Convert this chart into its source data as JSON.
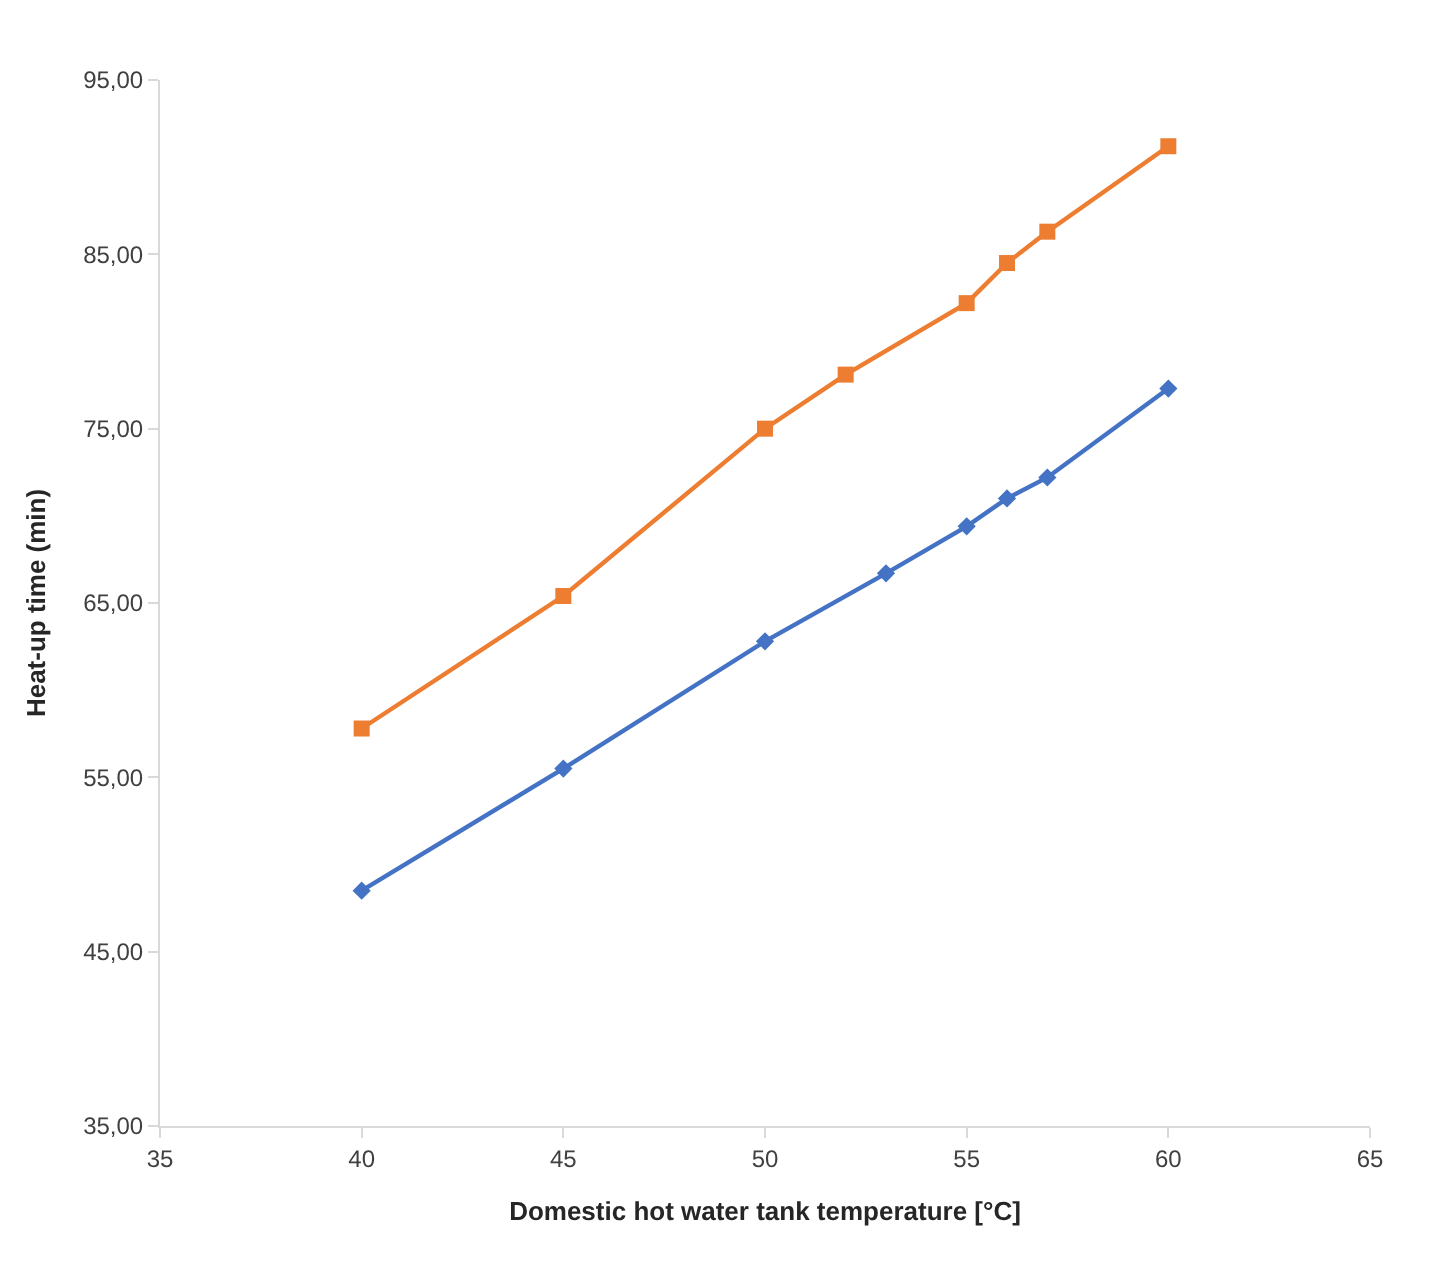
{
  "chart_data": {
    "type": "line",
    "xlabel": "Domestic hot water tank temperature [°C]",
    "ylabel": "Heat-up time (min)",
    "xlim": [
      35,
      65
    ],
    "xticks": [
      35,
      40,
      45,
      50,
      55,
      60,
      65
    ],
    "ylim": [
      35,
      95
    ],
    "yticks": [
      {
        "value": 35,
        "label": "35,00"
      },
      {
        "value": 45,
        "label": "45,00"
      },
      {
        "value": 55,
        "label": "55,00"
      },
      {
        "value": 65,
        "label": "65,00"
      },
      {
        "value": 75,
        "label": "75,00"
      },
      {
        "value": 85,
        "label": "85,00"
      },
      {
        "value": 95,
        "label": "95,00"
      }
    ],
    "series": [
      {
        "color": "#ed7d31",
        "marker": "square",
        "x": [
          40,
          45,
          50,
          52,
          55,
          56,
          57,
          60
        ],
        "values": [
          57.8,
          65.4,
          75.0,
          78.1,
          82.2,
          84.5,
          86.3,
          91.2
        ]
      },
      {
        "color": "#4472c4",
        "marker": "diamond",
        "x": [
          40,
          45,
          50,
          53,
          55,
          56,
          57,
          60
        ],
        "values": [
          48.5,
          55.5,
          62.8,
          66.7,
          69.4,
          71.0,
          72.2,
          77.3
        ]
      }
    ]
  }
}
